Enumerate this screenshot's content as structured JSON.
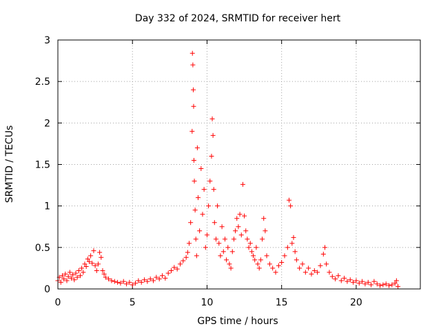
{
  "chart_data": {
    "type": "scatter",
    "title": "Day 332 of 2024, SRMTID for receiver hert",
    "xlabel": "GPS time / hours",
    "ylabel": "SRMTID / TECUs",
    "xlim": [
      0,
      24.3
    ],
    "ylim": [
      0,
      3
    ],
    "xticks": [
      0,
      5,
      10,
      15,
      20
    ],
    "xtick_labels": [
      "0",
      "5",
      "10",
      "15",
      "20"
    ],
    "yticks": [
      0,
      0.5,
      1,
      1.5,
      2,
      2.5,
      3
    ],
    "ytick_labels": [
      "0",
      "0.5",
      "1",
      "1.5",
      "2",
      "2.5",
      "3"
    ],
    "grid": true,
    "marker": "+",
    "series": [
      {
        "name": "SRMTID",
        "color": "#ff0000",
        "points": [
          [
            0.0,
            0.1
          ],
          [
            0.1,
            0.14
          ],
          [
            0.2,
            0.08
          ],
          [
            0.3,
            0.16
          ],
          [
            0.4,
            0.12
          ],
          [
            0.5,
            0.18
          ],
          [
            0.6,
            0.1
          ],
          [
            0.7,
            0.15
          ],
          [
            0.8,
            0.2
          ],
          [
            0.9,
            0.13
          ],
          [
            1.0,
            0.17
          ],
          [
            1.1,
            0.11
          ],
          [
            1.2,
            0.19
          ],
          [
            1.3,
            0.14
          ],
          [
            1.4,
            0.22
          ],
          [
            1.5,
            0.16
          ],
          [
            1.6,
            0.25
          ],
          [
            1.7,
            0.2
          ],
          [
            1.8,
            0.3
          ],
          [
            1.9,
            0.27
          ],
          [
            2.0,
            0.36
          ],
          [
            2.1,
            0.33
          ],
          [
            2.2,
            0.4
          ],
          [
            2.3,
            0.31
          ],
          [
            2.4,
            0.46
          ],
          [
            2.5,
            0.28
          ],
          [
            2.6,
            0.22
          ],
          [
            2.7,
            0.3
          ],
          [
            2.8,
            0.44
          ],
          [
            2.9,
            0.38
          ],
          [
            3.0,
            0.22
          ],
          [
            3.1,
            0.18
          ],
          [
            3.2,
            0.14
          ],
          [
            3.4,
            0.12
          ],
          [
            3.6,
            0.1
          ],
          [
            3.8,
            0.09
          ],
          [
            4.0,
            0.08
          ],
          [
            4.2,
            0.07
          ],
          [
            4.4,
            0.09
          ],
          [
            4.6,
            0.06
          ],
          [
            4.8,
            0.08
          ],
          [
            5.0,
            0.05
          ],
          [
            5.2,
            0.07
          ],
          [
            5.4,
            0.1
          ],
          [
            5.6,
            0.08
          ],
          [
            5.8,
            0.11
          ],
          [
            6.0,
            0.09
          ],
          [
            6.2,
            0.12
          ],
          [
            6.4,
            0.1
          ],
          [
            6.6,
            0.14
          ],
          [
            6.8,
            0.12
          ],
          [
            7.0,
            0.16
          ],
          [
            7.2,
            0.13
          ],
          [
            7.4,
            0.19
          ],
          [
            7.6,
            0.22
          ],
          [
            7.8,
            0.26
          ],
          [
            8.0,
            0.24
          ],
          [
            8.2,
            0.3
          ],
          [
            8.4,
            0.34
          ],
          [
            8.6,
            0.38
          ],
          [
            8.7,
            0.44
          ],
          [
            8.8,
            0.55
          ],
          [
            8.9,
            0.8
          ],
          [
            9.0,
            1.9
          ],
          [
            9.02,
            2.84
          ],
          [
            9.05,
            2.7
          ],
          [
            9.08,
            2.4
          ],
          [
            9.1,
            2.2
          ],
          [
            9.12,
            1.55
          ],
          [
            9.15,
            1.3
          ],
          [
            9.2,
            0.95
          ],
          [
            9.25,
            0.6
          ],
          [
            9.3,
            0.4
          ],
          [
            9.35,
            1.7
          ],
          [
            9.4,
            1.1
          ],
          [
            9.5,
            0.7
          ],
          [
            9.6,
            1.45
          ],
          [
            9.7,
            0.9
          ],
          [
            9.8,
            1.2
          ],
          [
            9.9,
            0.5
          ],
          [
            10.0,
            0.65
          ],
          [
            10.1,
            1.0
          ],
          [
            10.2,
            1.3
          ],
          [
            10.3,
            1.6
          ],
          [
            10.35,
            2.05
          ],
          [
            10.4,
            1.85
          ],
          [
            10.45,
            1.2
          ],
          [
            10.5,
            0.8
          ],
          [
            10.6,
            0.6
          ],
          [
            10.7,
            1.0
          ],
          [
            10.8,
            0.55
          ],
          [
            10.9,
            0.4
          ],
          [
            11.0,
            0.75
          ],
          [
            11.1,
            0.45
          ],
          [
            11.2,
            0.6
          ],
          [
            11.3,
            0.35
          ],
          [
            11.4,
            0.5
          ],
          [
            11.5,
            0.3
          ],
          [
            11.6,
            0.25
          ],
          [
            11.7,
            0.45
          ],
          [
            11.8,
            0.6
          ],
          [
            11.9,
            0.7
          ],
          [
            12.0,
            0.85
          ],
          [
            12.1,
            0.75
          ],
          [
            12.2,
            0.9
          ],
          [
            12.3,
            0.65
          ],
          [
            12.4,
            1.26
          ],
          [
            12.5,
            0.88
          ],
          [
            12.6,
            0.7
          ],
          [
            12.7,
            0.6
          ],
          [
            12.8,
            0.5
          ],
          [
            12.9,
            0.55
          ],
          [
            13.0,
            0.45
          ],
          [
            13.1,
            0.4
          ],
          [
            13.2,
            0.35
          ],
          [
            13.3,
            0.5
          ],
          [
            13.4,
            0.3
          ],
          [
            13.5,
            0.25
          ],
          [
            13.6,
            0.35
          ],
          [
            13.7,
            0.6
          ],
          [
            13.8,
            0.85
          ],
          [
            13.9,
            0.7
          ],
          [
            14.0,
            0.4
          ],
          [
            14.2,
            0.3
          ],
          [
            14.4,
            0.25
          ],
          [
            14.6,
            0.2
          ],
          [
            14.8,
            0.28
          ],
          [
            15.0,
            0.32
          ],
          [
            15.2,
            0.4
          ],
          [
            15.4,
            0.5
          ],
          [
            15.5,
            1.07
          ],
          [
            15.6,
            1.0
          ],
          [
            15.7,
            0.55
          ],
          [
            15.8,
            0.62
          ],
          [
            15.9,
            0.45
          ],
          [
            16.0,
            0.35
          ],
          [
            16.2,
            0.25
          ],
          [
            16.4,
            0.3
          ],
          [
            16.6,
            0.2
          ],
          [
            16.8,
            0.25
          ],
          [
            17.0,
            0.18
          ],
          [
            17.2,
            0.22
          ],
          [
            17.4,
            0.2
          ],
          [
            17.6,
            0.28
          ],
          [
            17.8,
            0.42
          ],
          [
            17.9,
            0.5
          ],
          [
            18.0,
            0.3
          ],
          [
            18.2,
            0.2
          ],
          [
            18.4,
            0.15
          ],
          [
            18.6,
            0.12
          ],
          [
            18.8,
            0.16
          ],
          [
            19.0,
            0.1
          ],
          [
            19.2,
            0.13
          ],
          [
            19.4,
            0.09
          ],
          [
            19.6,
            0.11
          ],
          [
            19.8,
            0.08
          ],
          [
            20.0,
            0.1
          ],
          [
            20.2,
            0.07
          ],
          [
            20.4,
            0.09
          ],
          [
            20.6,
            0.06
          ],
          [
            20.8,
            0.08
          ],
          [
            21.0,
            0.05
          ],
          [
            21.2,
            0.09
          ],
          [
            21.4,
            0.06
          ],
          [
            21.6,
            0.04
          ],
          [
            21.8,
            0.05
          ],
          [
            22.0,
            0.06
          ],
          [
            22.2,
            0.04
          ],
          [
            22.4,
            0.05
          ],
          [
            22.6,
            0.07
          ],
          [
            22.7,
            0.1
          ],
          [
            22.8,
            0.03
          ]
        ]
      }
    ]
  }
}
